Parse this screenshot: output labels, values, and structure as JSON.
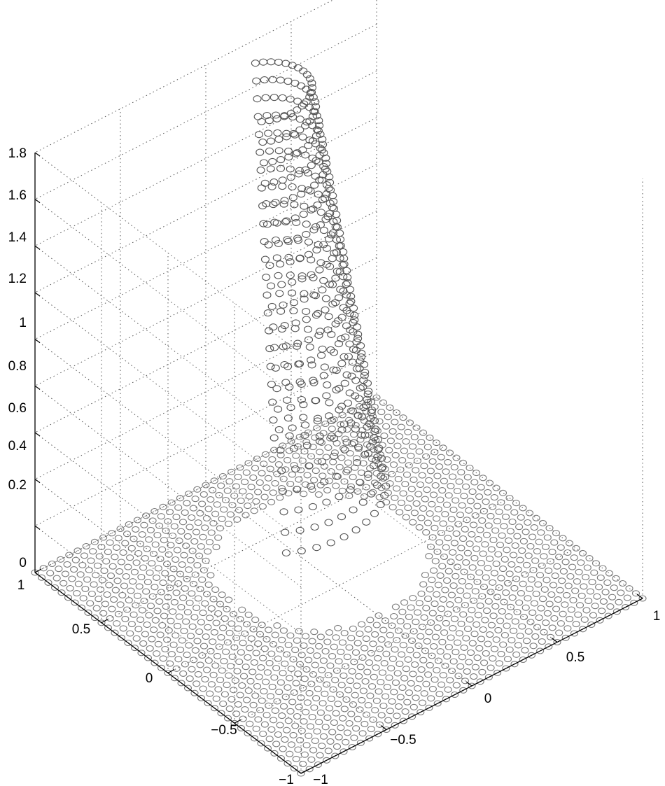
{
  "chart_data": {
    "type": "scatter",
    "title": "",
    "xlabel": "",
    "ylabel": "",
    "zlabel": "",
    "grid": true,
    "marker": "circle",
    "colors": {
      "points": "#7a7a7a",
      "axes": "#000000",
      "grid": "#555555"
    },
    "xlim": [
      -1,
      1
    ],
    "ylim": [
      -1,
      1
    ],
    "zlim": [
      0,
      1.8
    ],
    "x_ticks": [
      "−1",
      "−0.5",
      "0",
      "0.5",
      "1"
    ],
    "y_ticks": [
      "−1",
      "−0.5",
      "0",
      "0.5",
      "1"
    ],
    "z_ticks": [
      "0",
      "0.2",
      "0.4",
      "0.6",
      "0.8",
      "1",
      "1.2",
      "1.4",
      "1.6",
      "1.8"
    ],
    "series": [
      {
        "description_key": "plane",
        "z": 0,
        "grid_step": 0.05,
        "excluded_hole": {
          "center": [
            0.05,
            0.2
          ],
          "radius": 0.5
        }
      },
      {
        "description_key": "curved_sheet",
        "rows": 22,
        "points_per_row": 22,
        "z_range": [
          0.3,
          1.72
        ]
      }
    ]
  }
}
